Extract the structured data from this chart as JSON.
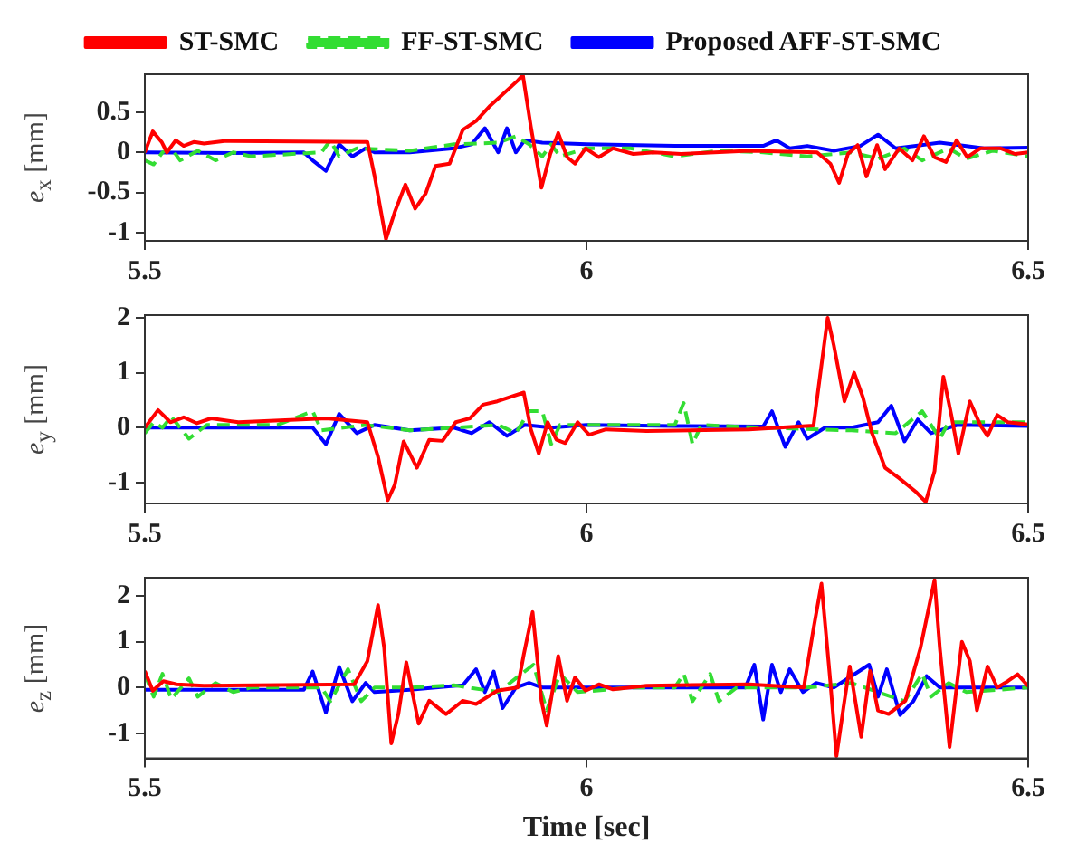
{
  "chart_data": [
    {
      "type": "line",
      "ylabel": "e$_{x}$ [mm]",
      "xlim": [
        5.5,
        6.5
      ],
      "xticks": [
        5.5,
        6,
        6.5
      ],
      "ylim": [
        -1.1,
        0.97
      ],
      "yticks": [
        -1,
        -0.5,
        0,
        0.5
      ],
      "legend": "top",
      "series": [
        {
          "name": "ST-SMC",
          "color": "#ff0000",
          "line_style": "solid",
          "x": [
            5.5,
            5.509,
            5.519,
            5.525,
            5.535,
            5.544,
            5.556,
            5.567,
            5.59,
            5.752,
            5.76,
            5.773,
            5.783,
            5.795,
            5.806,
            5.818,
            5.829,
            5.845,
            5.86,
            5.875,
            5.891,
            5.922,
            5.928,
            5.937,
            5.949,
            5.959,
            5.968,
            5.978,
            5.987,
            5.999,
            6.014,
            6.03,
            6.053,
            6.076,
            6.107,
            6.184,
            6.261,
            6.276,
            6.286,
            6.296,
            6.307,
            6.317,
            6.329,
            6.338,
            6.354,
            6.369,
            6.382,
            6.394,
            6.407,
            6.419,
            6.431,
            6.446,
            6.469,
            6.485,
            6.5
          ],
          "values": [
            0,
            0.26,
            0.13,
            0,
            0.15,
            0.08,
            0.13,
            0.11,
            0.14,
            0.13,
            -0.29,
            -1.08,
            -0.74,
            -0.4,
            -0.7,
            -0.51,
            -0.17,
            -0.14,
            0.28,
            0.39,
            0.58,
            0.89,
            0.96,
            0.32,
            -0.44,
            -0.02,
            0.24,
            -0.06,
            -0.14,
            0.05,
            -0.06,
            0.05,
            -0.02,
            0,
            -0.02,
            0.02,
            0,
            -0.14,
            -0.38,
            -0.02,
            0.09,
            -0.3,
            0.09,
            -0.21,
            0.05,
            -0.1,
            0.2,
            -0.06,
            -0.12,
            0.15,
            -0.06,
            0.05,
            0.05,
            -0.02,
            0
          ]
        },
        {
          "name": "FF-ST-SMC",
          "color": "#33dd33",
          "line_style": "dashed",
          "x": [
            5.5,
            5.51,
            5.52,
            5.53,
            5.54,
            5.56,
            5.58,
            5.6,
            5.62,
            5.7,
            5.71,
            5.72,
            5.74,
            5.8,
            5.85,
            5.9,
            5.92,
            5.935,
            5.95,
            5.96,
            5.97,
            6.0,
            6.05,
            6.1,
            6.15,
            6.2,
            6.25,
            6.3,
            6.33,
            6.36,
            6.38,
            6.41,
            6.43,
            6.46,
            6.5
          ],
          "values": [
            -0.1,
            -0.15,
            0,
            0.05,
            -0.1,
            0.02,
            -0.1,
            0,
            -0.05,
            0,
            0.15,
            -0.05,
            0.05,
            0.02,
            0.1,
            0.12,
            0.2,
            0.1,
            -0.05,
            0.1,
            -0.05,
            0.05,
            0.05,
            -0.05,
            0.02,
            0,
            -0.05,
            0,
            -0.08,
            0.05,
            -0.1,
            0.05,
            -0.08,
            0.02,
            -0.05
          ]
        },
        {
          "name": "Proposed AFF-ST-SMC",
          "color": "#0000ff",
          "line_style": "solid",
          "x": [
            5.5,
            5.6,
            5.68,
            5.69,
            5.705,
            5.72,
            5.735,
            5.75,
            5.76,
            5.8,
            5.85,
            5.87,
            5.885,
            5.9,
            5.91,
            5.92,
            5.93,
            5.95,
            6.0,
            6.1,
            6.2,
            6.215,
            6.23,
            6.25,
            6.28,
            6.31,
            6.33,
            6.35,
            6.4,
            6.45,
            6.5
          ],
          "values": [
            0,
            -0.01,
            0,
            -0.1,
            -0.23,
            0.1,
            -0.05,
            0.05,
            0,
            0,
            0.05,
            0.1,
            0.3,
            0,
            0.3,
            0,
            0.15,
            0.12,
            0.1,
            0.08,
            0.08,
            0.15,
            0.05,
            0.08,
            0.02,
            0.08,
            0.22,
            0.05,
            0.12,
            0.05,
            0.06
          ]
        }
      ]
    },
    {
      "type": "line",
      "ylabel": "e$_{y}$ [mm]",
      "xlim": [
        5.5,
        6.5
      ],
      "xticks": [
        5.5,
        6,
        6.5
      ],
      "ylim": [
        -1.38,
        2.05
      ],
      "yticks": [
        -1,
        0,
        1,
        2
      ],
      "series": [
        {
          "color": "#ff0000",
          "line_style": "solid",
          "x": [
            5.5,
            5.515,
            5.529,
            5.544,
            5.559,
            5.575,
            5.606,
            5.706,
            5.752,
            5.764,
            5.775,
            5.783,
            5.793,
            5.808,
            5.822,
            5.837,
            5.852,
            5.868,
            5.883,
            5.899,
            5.929,
            5.937,
            5.946,
            5.956,
            5.966,
            5.976,
            5.99,
            6.003,
            6.022,
            6.068,
            6.184,
            6.257,
            6.273,
            6.28,
            6.292,
            6.303,
            6.313,
            6.323,
            6.338,
            6.354,
            6.373,
            6.384,
            6.394,
            6.404,
            6.413,
            6.421,
            6.434,
            6.446,
            6.454,
            6.465,
            6.477,
            6.5
          ],
          "values": [
            0,
            0.32,
            0.1,
            0.19,
            0.08,
            0.17,
            0.1,
            0.17,
            0.1,
            -0.53,
            -1.32,
            -1.04,
            -0.25,
            -0.73,
            -0.22,
            -0.24,
            0.1,
            0.17,
            0.42,
            0.48,
            0.64,
            -0.03,
            -0.47,
            0.1,
            -0.22,
            -0.28,
            0.1,
            -0.13,
            -0.03,
            -0.06,
            -0.03,
            0.04,
            2.0,
            1.5,
            0.48,
            1.0,
            0.55,
            -0.09,
            -0.73,
            -0.92,
            -1.17,
            -1.35,
            -0.79,
            0.93,
            0.23,
            -0.47,
            0.48,
            0.04,
            -0.15,
            0.23,
            0.1,
            0.06
          ]
        },
        {
          "color": "#33dd33",
          "line_style": "dashed",
          "x": [
            5.5,
            5.51,
            5.52,
            5.53,
            5.55,
            5.57,
            5.6,
            5.65,
            5.69,
            5.7,
            5.75,
            5.8,
            5.85,
            5.9,
            5.92,
            5.935,
            5.95,
            5.96,
            5.97,
            6.1,
            6.11,
            6.12,
            6.13,
            6.2,
            6.3,
            6.35,
            6.38,
            6.4,
            6.41,
            6.5
          ],
          "values": [
            -0.1,
            0.1,
            0,
            0.2,
            -0.2,
            0.05,
            0.05,
            0.05,
            0.3,
            -0.05,
            0.05,
            -0.05,
            0,
            0.05,
            -0.1,
            0.3,
            0.3,
            -0.3,
            0.05,
            0.05,
            0.45,
            -0.3,
            0.05,
            0,
            -0.05,
            -0.1,
            0.3,
            -0.2,
            0.1,
            0.1
          ]
        },
        {
          "color": "#0000ff",
          "line_style": "solid",
          "x": [
            5.5,
            5.6,
            5.69,
            5.705,
            5.72,
            5.74,
            5.76,
            5.8,
            5.85,
            5.87,
            5.89,
            5.91,
            5.93,
            5.96,
            6.0,
            6.1,
            6.2,
            6.21,
            6.225,
            6.24,
            6.25,
            6.27,
            6.3,
            6.33,
            6.345,
            6.36,
            6.375,
            6.39,
            6.42,
            6.5
          ],
          "values": [
            0,
            0,
            0,
            -0.3,
            0.25,
            -0.1,
            0.05,
            -0.05,
            0,
            -0.1,
            0.1,
            -0.15,
            0.05,
            0,
            0.05,
            0.03,
            0.02,
            0.3,
            -0.35,
            0.1,
            -0.2,
            0,
            0,
            0.1,
            0.4,
            -0.25,
            0.15,
            -0.1,
            0.05,
            0.03
          ]
        }
      ]
    },
    {
      "type": "line",
      "xlabel": "Time [sec]",
      "ylabel": "e$_{z}$ [mm]",
      "xlim": [
        5.5,
        6.5
      ],
      "xticks": [
        5.5,
        6,
        6.5
      ],
      "ylim": [
        -1.55,
        2.4
      ],
      "yticks": [
        -1,
        0,
        1,
        2
      ],
      "series": [
        {
          "color": "#ff0000",
          "line_style": "solid",
          "x": [
            5.5,
            5.509,
            5.521,
            5.536,
            5.567,
            5.737,
            5.752,
            5.764,
            5.771,
            5.779,
            5.787,
            5.796,
            5.81,
            5.822,
            5.841,
            5.86,
            5.875,
            5.899,
            5.922,
            5.929,
            5.939,
            5.949,
            5.955,
            5.968,
            5.978,
            5.987,
            5.999,
            6.014,
            6.03,
            6.068,
            6.184,
            6.246,
            6.257,
            6.266,
            6.276,
            6.283,
            6.292,
            6.298,
            6.311,
            6.321,
            6.33,
            6.342,
            6.361,
            6.378,
            6.394,
            6.4,
            6.411,
            6.425,
            6.434,
            6.442,
            6.454,
            6.465,
            6.477,
            6.488,
            6.5
          ],
          "values": [
            0.36,
            -0.07,
            0.14,
            0.07,
            0.04,
            0.07,
            0.58,
            1.8,
            0.86,
            -1.22,
            -0.58,
            0.55,
            -0.79,
            -0.29,
            -0.58,
            -0.29,
            -0.36,
            -0.07,
            0,
            0.72,
            1.65,
            -0.29,
            -0.83,
            0.69,
            -0.29,
            0.22,
            -0.07,
            0.07,
            -0.04,
            0.04,
            0.07,
            0,
            1.29,
            2.27,
            0.14,
            -1.5,
            -0.29,
            0.46,
            -1.08,
            0.36,
            -0.5,
            -0.58,
            -0.29,
            0.86,
            2.35,
            0.86,
            -1.3,
            1.0,
            0.58,
            -0.5,
            0.46,
            0,
            0.14,
            0.29,
            0.03
          ]
        },
        {
          "color": "#33dd33",
          "line_style": "dashed",
          "x": [
            5.5,
            5.51,
            5.52,
            5.53,
            5.55,
            5.56,
            5.58,
            5.6,
            5.62,
            5.7,
            5.71,
            5.73,
            5.745,
            5.76,
            5.8,
            5.85,
            5.9,
            5.92,
            5.94,
            5.955,
            5.97,
            5.99,
            6.05,
            6.1,
            6.11,
            6.12,
            6.14,
            6.15,
            6.17,
            6.25,
            6.3,
            6.33,
            6.36,
            6.38,
            6.39,
            6.41,
            6.43,
            6.5
          ],
          "values": [
            0.3,
            -0.2,
            0.3,
            -0.25,
            0.2,
            -0.2,
            0.1,
            -0.1,
            0,
            0,
            -0.3,
            0.4,
            -0.3,
            0,
            0,
            0.05,
            -0.1,
            0.2,
            0.5,
            -0.5,
            0.3,
            -0.1,
            0,
            0,
            0.3,
            -0.3,
            0.3,
            -0.3,
            0,
            0,
            0.1,
            -0.1,
            -0.3,
            0.3,
            -0.2,
            0.1,
            -0.1,
            0
          ]
        },
        {
          "color": "#0000ff",
          "line_style": "solid",
          "x": [
            5.5,
            5.68,
            5.69,
            5.705,
            5.72,
            5.735,
            5.75,
            5.76,
            5.8,
            5.86,
            5.875,
            5.885,
            5.895,
            5.905,
            5.92,
            5.935,
            5.95,
            6.0,
            6.1,
            6.18,
            6.19,
            6.2,
            6.21,
            6.22,
            6.23,
            6.245,
            6.26,
            6.28,
            6.32,
            6.33,
            6.34,
            6.355,
            6.37,
            6.385,
            6.4,
            6.45,
            6.5
          ],
          "values": [
            -0.05,
            -0.05,
            0.35,
            -0.55,
            0.45,
            -0.3,
            0.1,
            -0.1,
            -0.05,
            0.05,
            0.4,
            -0.1,
            0.35,
            -0.45,
            0,
            0.1,
            0,
            0,
            0,
            0,
            0.5,
            -0.7,
            0.5,
            -0.1,
            0.4,
            -0.1,
            0.1,
            0,
            0.5,
            -0.2,
            0.4,
            -0.6,
            -0.3,
            0.25,
            0,
            0,
            0
          ]
        }
      ]
    }
  ]
}
